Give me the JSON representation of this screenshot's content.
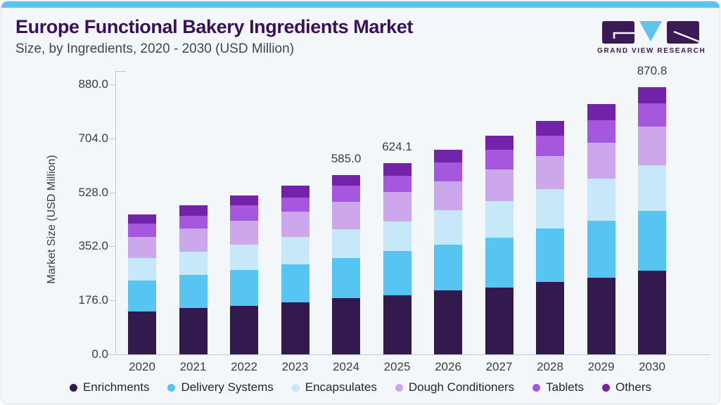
{
  "header": {
    "title": "Europe Functional Bakery Ingredients Market",
    "subtitle": "Size, by Ingredients, 2020 - 2030 (USD Million)"
  },
  "logo": {
    "text": "GRAND VIEW RESEARCH"
  },
  "colors": {
    "accent_bar": "#5bc1ee",
    "panel_bg": "#f3f7fa",
    "panel_border": "#d8e2ea",
    "axis_line": "#c2cad2",
    "axis_text": "#3b3b46",
    "title_text": "#38115a",
    "subtitle_text": "#44444f",
    "legend_text": "#26262e",
    "logo_mark": "#3b1b55",
    "logo_triangle": "#5ec4ee"
  },
  "chart_data": {
    "type": "bar",
    "stacked": true,
    "title": "Europe Functional Bakery Ingredients Market",
    "subtitle": "Size, by Ingredients, 2020 - 2030 (USD Million)",
    "xlabel": "",
    "ylabel": "Market Size (USD Million)",
    "ylim": [
      0,
      880
    ],
    "yticks": [
      "880.0",
      "704.0",
      "528.0",
      "352.0",
      "176.0",
      "0.0"
    ],
    "grid": false,
    "legend_position": "bottom",
    "categories": [
      "2020",
      "2021",
      "2022",
      "2023",
      "2024",
      "2025",
      "2026",
      "2027",
      "2028",
      "2029",
      "2030"
    ],
    "series": [
      {
        "name": "Enrichments",
        "color": "#321a4e",
        "values": [
          139.2,
          151.4,
          159.2,
          169.7,
          183.5,
          193.0,
          208.0,
          217.9,
          237.1,
          250.9,
          273.6
        ]
      },
      {
        "name": "Delivery Systems",
        "color": "#56c5f2",
        "values": [
          101.6,
          108.7,
          114.7,
          122.5,
          131.6,
          142.9,
          149.8,
          162.8,
          173.4,
          184.8,
          194.9
        ]
      },
      {
        "name": "Encapsulates",
        "color": "#c6e8f8",
        "values": [
          72.7,
          74.1,
          83.9,
          90.1,
          94.0,
          97.9,
          112.4,
          118.6,
          128.4,
          137.6,
          149.1
        ]
      },
      {
        "name": "Dough Conditioners",
        "color": "#cda7ec",
        "values": [
          68.8,
          76.4,
          78.0,
          81.9,
          89.4,
          95.4,
          93.3,
          103.2,
          107.1,
          117.0,
          126.1
        ]
      },
      {
        "name": "Tablets",
        "color": "#a558dd",
        "values": [
          43.6,
          42.2,
          49.8,
          45.9,
          51.8,
          52.7,
          61.2,
          64.9,
          67.2,
          72.7,
          74.3
        ]
      },
      {
        "name": "Others",
        "color": "#7322aa",
        "values": [
          30.5,
          32.8,
          32.1,
          39.0,
          34.7,
          42.2,
          42.7,
          45.1,
          47.5,
          53.4,
          52.8
        ]
      }
    ],
    "bar_total_labels": {
      "2024": "585.0",
      "2025": "624.1",
      "2030": "870.8"
    },
    "totals": [
      456.4,
      485.6,
      517.7,
      549.1,
      585.0,
      624.1,
      667.4,
      712.5,
      760.7,
      816.4,
      870.8
    ]
  }
}
